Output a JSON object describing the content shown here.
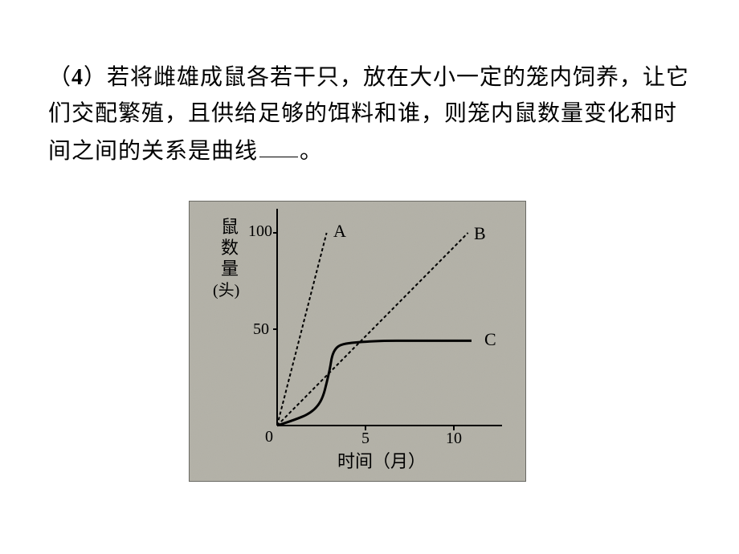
{
  "question": {
    "prefix": "（",
    "num": "4",
    "body": "）若将雌雄成鼠各若干只，放在大小一定的笼内饲养，让它们交配繁殖，且供给足够的饵料和谁，则笼内鼠数量变化和时间之间的关系是曲线",
    "suffix": "。"
  },
  "chart": {
    "type": "line",
    "background_color": "#b2b0a6",
    "border_color": "#6a6a64",
    "axis_color": "#000000",
    "grid_noise": "#9a988e",
    "xlim": [
      0,
      12
    ],
    "ylim": [
      0,
      110
    ],
    "xticks": [
      0,
      5,
      10
    ],
    "yticks": [
      0,
      50,
      100
    ],
    "xlabel": "时间（月）",
    "ylabel_l1": "鼠",
    "ylabel_l2": "数",
    "ylabel_l3": "量",
    "ylabel_unit": "(头)",
    "series": {
      "A": {
        "label": "A",
        "dash": "4,3",
        "points": [
          [
            0,
            0
          ],
          [
            2.8,
            100
          ]
        ]
      },
      "B": {
        "label": "B",
        "dash": "4,3",
        "points": [
          [
            0,
            0
          ],
          [
            10.8,
            100
          ]
        ]
      },
      "C": {
        "label": "C",
        "dash": "none",
        "points": [
          [
            0,
            0
          ],
          [
            1.0,
            3
          ],
          [
            1.8,
            6
          ],
          [
            2.3,
            10
          ],
          [
            2.6,
            15
          ],
          [
            2.8,
            22
          ],
          [
            3.0,
            30
          ],
          [
            3.1,
            36
          ],
          [
            3.3,
            40
          ],
          [
            3.6,
            42
          ],
          [
            4.2,
            43
          ],
          [
            5.0,
            43.5
          ],
          [
            6.0,
            44
          ],
          [
            7.5,
            44
          ],
          [
            9.0,
            44
          ],
          [
            11.0,
            44
          ]
        ]
      }
    },
    "font_size_axis": 18,
    "font_size_labels": 20,
    "font_family": "SimSun"
  }
}
